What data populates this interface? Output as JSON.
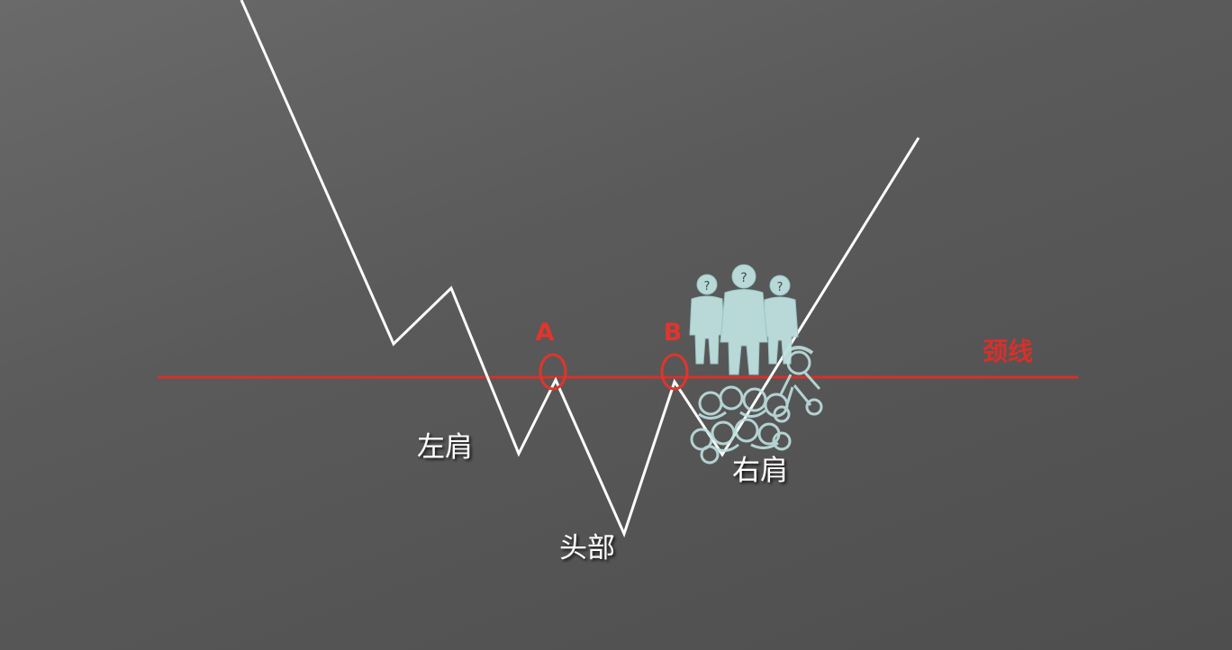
{
  "labels": {
    "neckline": "颈线",
    "left_shoulder": "左肩",
    "head": "头部",
    "right_shoulder": "右肩",
    "point_a": "A",
    "point_b": "B"
  },
  "colors": {
    "price_line": "#ffffff",
    "neckline": "#d8302a",
    "markers": "#e0352c",
    "figures": "#bfe0e0",
    "label_text": "#ffffff"
  },
  "decorations": {
    "crowd_icon": "people-with-question-marks",
    "runner_icon": "running-mario-crowd"
  }
}
